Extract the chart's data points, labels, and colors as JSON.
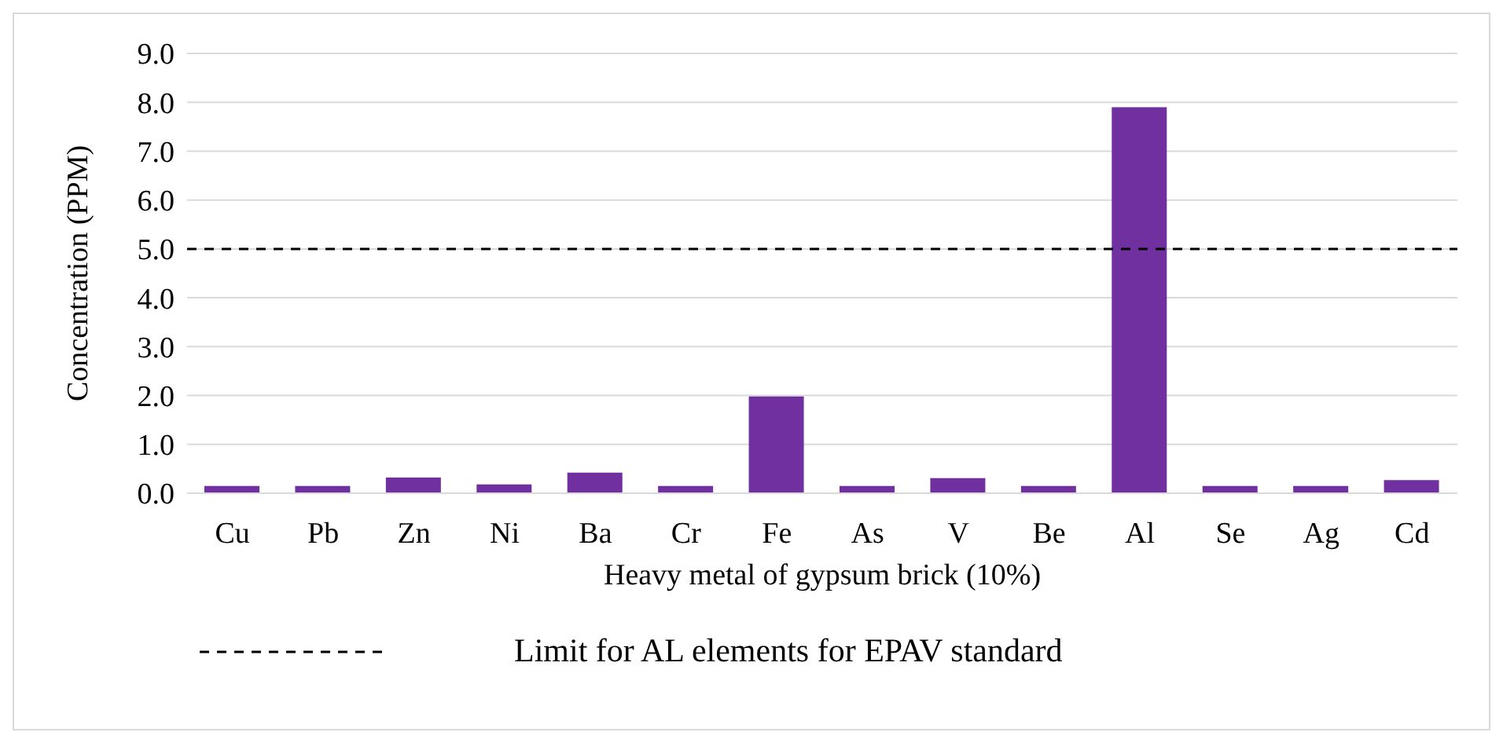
{
  "chart_data": {
    "type": "bar",
    "xlabel": "Heavy metal of gypsum brick (10%)",
    "ylabel": "Concentration (PPM)",
    "categories": [
      "Cu",
      "Pb",
      "Zn",
      "Ni",
      "Ba",
      "Cr",
      "Fe",
      "As",
      "V",
      "Be",
      "Al",
      "Se",
      "Ag",
      "Cd"
    ],
    "values": [
      0.15,
      0.15,
      0.32,
      0.18,
      0.42,
      0.15,
      1.98,
      0.15,
      0.31,
      0.15,
      7.9,
      0.15,
      0.15,
      0.27
    ],
    "color": "#7030a0",
    "ylim": [
      0,
      9
    ],
    "yticks": [
      {
        "value": 0,
        "label": "0.0"
      },
      {
        "value": 1,
        "label": "1.0"
      },
      {
        "value": 2,
        "label": "2.0"
      },
      {
        "value": 3,
        "label": "3.0"
      },
      {
        "value": 4,
        "label": "4.0"
      },
      {
        "value": 5,
        "label": "5.0"
      },
      {
        "value": 6,
        "label": "6.0"
      },
      {
        "value": 7,
        "label": "7.0"
      },
      {
        "value": 8,
        "label": "8.0"
      },
      {
        "value": 9,
        "label": "9.0"
      }
    ],
    "grid": "y",
    "ref_lines": [
      {
        "axis": "y",
        "value": 5,
        "label": "Limit for AL elements for EPAV standard",
        "color": "#000000",
        "line_style": "dashed"
      }
    ],
    "legend": "bottom"
  }
}
